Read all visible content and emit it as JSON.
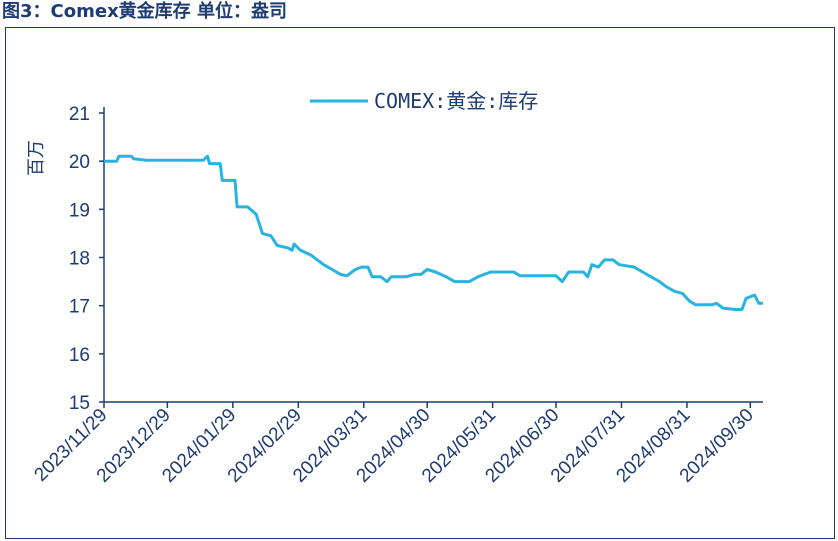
{
  "title": "图3：Comex黄金库存 单位：盎司",
  "chart_data": {
    "type": "line",
    "ylabel": "百万",
    "ylim": [
      15,
      21
    ],
    "yticks": [
      15,
      16,
      17,
      18,
      19,
      20,
      21
    ],
    "xlim": [
      "2023-11-29",
      "2024-10-06"
    ],
    "xticks": [
      "2023/11/29",
      "2023/12/29",
      "2024/01/29",
      "2024/02/29",
      "2024/03/31",
      "2024/04/30",
      "2024/05/31",
      "2024/06/30",
      "2024/07/31",
      "2024/08/31",
      "2024/09/30"
    ],
    "legend": "top-center",
    "color": "#29b3e0",
    "series": [
      {
        "name": "COMEX:黄金:库存",
        "points": [
          [
            "2023-11-29",
            20.0
          ],
          [
            "2023-12-05",
            20.0
          ],
          [
            "2023-12-06",
            20.1
          ],
          [
            "2023-12-12",
            20.1
          ],
          [
            "2023-12-13",
            20.05
          ],
          [
            "2023-12-19",
            20.02
          ],
          [
            "2024-01-15",
            20.02
          ],
          [
            "2024-01-17",
            20.1
          ],
          [
            "2024-01-18",
            19.95
          ],
          [
            "2024-01-23",
            19.95
          ],
          [
            "2024-01-24",
            19.6
          ],
          [
            "2024-01-30",
            19.6
          ],
          [
            "2024-01-31",
            19.05
          ],
          [
            "2024-02-05",
            19.05
          ],
          [
            "2024-02-09",
            18.9
          ],
          [
            "2024-02-12",
            18.5
          ],
          [
            "2024-02-16",
            18.45
          ],
          [
            "2024-02-19",
            18.25
          ],
          [
            "2024-02-24",
            18.2
          ],
          [
            "2024-02-26",
            18.15
          ],
          [
            "2024-02-27",
            18.28
          ],
          [
            "2024-03-01",
            18.15
          ],
          [
            "2024-03-06",
            18.05
          ],
          [
            "2024-03-09",
            17.95
          ],
          [
            "2024-03-12",
            17.85
          ],
          [
            "2024-03-16",
            17.75
          ],
          [
            "2024-03-20",
            17.65
          ],
          [
            "2024-03-23",
            17.62
          ],
          [
            "2024-03-27",
            17.75
          ],
          [
            "2024-03-30",
            17.8
          ],
          [
            "2024-04-02",
            17.8
          ],
          [
            "2024-04-04",
            17.6
          ],
          [
            "2024-04-08",
            17.6
          ],
          [
            "2024-04-11",
            17.5
          ],
          [
            "2024-04-13",
            17.6
          ],
          [
            "2024-04-20",
            17.6
          ],
          [
            "2024-04-24",
            17.65
          ],
          [
            "2024-04-27",
            17.65
          ],
          [
            "2024-04-30",
            17.75
          ],
          [
            "2024-05-04",
            17.7
          ],
          [
            "2024-05-09",
            17.6
          ],
          [
            "2024-05-13",
            17.5
          ],
          [
            "2024-05-20",
            17.5
          ],
          [
            "2024-05-24",
            17.6
          ],
          [
            "2024-05-30",
            17.7
          ],
          [
            "2024-06-10",
            17.7
          ],
          [
            "2024-06-13",
            17.62
          ],
          [
            "2024-06-30",
            17.62
          ],
          [
            "2024-07-03",
            17.5
          ],
          [
            "2024-07-06",
            17.7
          ],
          [
            "2024-07-13",
            17.7
          ],
          [
            "2024-07-15",
            17.6
          ],
          [
            "2024-07-17",
            17.85
          ],
          [
            "2024-07-20",
            17.8
          ],
          [
            "2024-07-23",
            17.95
          ],
          [
            "2024-07-27",
            17.95
          ],
          [
            "2024-07-30",
            17.85
          ],
          [
            "2024-08-06",
            17.8
          ],
          [
            "2024-08-10",
            17.7
          ],
          [
            "2024-08-14",
            17.6
          ],
          [
            "2024-08-18",
            17.5
          ],
          [
            "2024-08-21",
            17.4
          ],
          [
            "2024-08-25",
            17.3
          ],
          [
            "2024-08-29",
            17.25
          ],
          [
            "2024-09-01",
            17.1
          ],
          [
            "2024-09-04",
            17.02
          ],
          [
            "2024-09-12",
            17.02
          ],
          [
            "2024-09-14",
            17.05
          ],
          [
            "2024-09-17",
            16.95
          ],
          [
            "2024-09-23",
            16.92
          ],
          [
            "2024-09-26",
            16.92
          ],
          [
            "2024-09-28",
            17.15
          ],
          [
            "2024-10-02",
            17.22
          ],
          [
            "2024-10-04",
            17.05
          ],
          [
            "2024-10-06",
            17.05
          ]
        ]
      }
    ]
  }
}
